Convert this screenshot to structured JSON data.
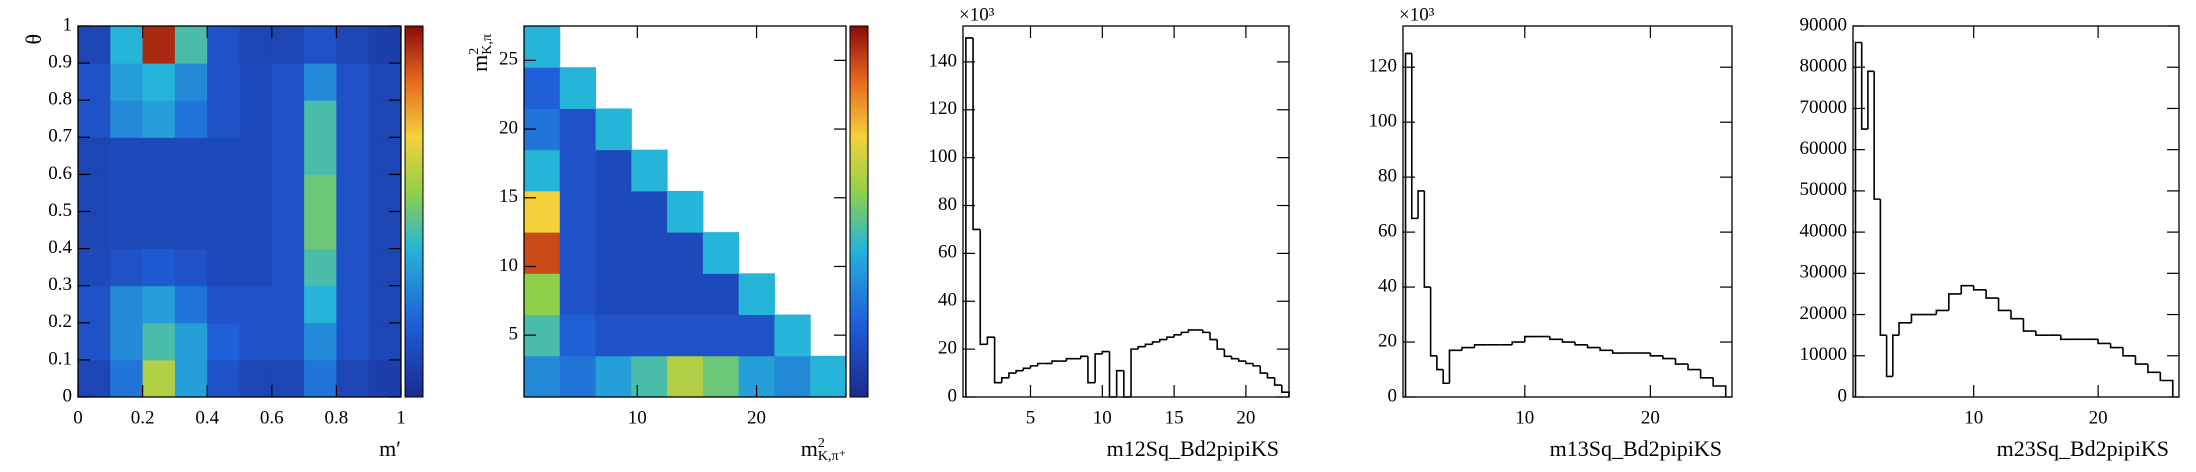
{
  "chart_data": [
    {
      "type": "heatmap",
      "x_edges": [
        0,
        0.1,
        0.2,
        0.3,
        0.4,
        0.5,
        0.6,
        0.7,
        0.8,
        0.9,
        1
      ],
      "y_edges": [
        0,
        0.1,
        0.2,
        0.3,
        0.4,
        0.5,
        0.6,
        0.7,
        0.8,
        0.9,
        1
      ],
      "z": [
        [
          10,
          25,
          60,
          35,
          15,
          10,
          10,
          25,
          10,
          8
        ],
        [
          15,
          30,
          45,
          35,
          20,
          15,
          15,
          30,
          15,
          10
        ],
        [
          15,
          30,
          35,
          25,
          15,
          15,
          15,
          40,
          15,
          10
        ],
        [
          12,
          15,
          18,
          15,
          12,
          12,
          15,
          45,
          15,
          10
        ],
        [
          10,
          12,
          12,
          12,
          12,
          12,
          15,
          50,
          15,
          10
        ],
        [
          10,
          12,
          12,
          12,
          12,
          12,
          15,
          50,
          15,
          10
        ],
        [
          10,
          12,
          12,
          12,
          12,
          12,
          15,
          45,
          15,
          10
        ],
        [
          15,
          30,
          35,
          25,
          15,
          12,
          15,
          45,
          15,
          10
        ],
        [
          15,
          35,
          40,
          30,
          15,
          12,
          15,
          30,
          15,
          10
        ],
        [
          10,
          40,
          95,
          45,
          15,
          10,
          10,
          15,
          10,
          8
        ]
      ],
      "zlim": [
        0,
        100
      ],
      "xlim": [
        0,
        1
      ],
      "ylim": [
        0,
        1
      ],
      "xticks": [
        0,
        0.2,
        0.4,
        0.6,
        0.8,
        1
      ],
      "yticks": [
        0,
        0.1,
        0.2,
        0.3,
        0.4,
        0.5,
        0.6,
        0.7,
        0.8,
        0.9,
        1
      ],
      "xlabel": "m′",
      "ylabel": "θ"
    },
    {
      "type": "heatmap",
      "x_edges": [
        0.5,
        3.5,
        6.5,
        9.5,
        12.5,
        15.5,
        18.5,
        21.5,
        24.5,
        27.5
      ],
      "y_edges": [
        0.5,
        3.5,
        6.5,
        9.5,
        12.5,
        15.5,
        18.5,
        21.5,
        24.5,
        27.5
      ],
      "z": [
        [
          30,
          25,
          35,
          45,
          60,
          50,
          35,
          30,
          40
        ],
        [
          45,
          20,
          15,
          15,
          15,
          15,
          15,
          40,
          null
        ],
        [
          55,
          15,
          12,
          12,
          12,
          12,
          40,
          null,
          null
        ],
        [
          90,
          15,
          12,
          12,
          12,
          40,
          null,
          null,
          null
        ],
        [
          70,
          15,
          12,
          12,
          40,
          null,
          null,
          null,
          null
        ],
        [
          40,
          15,
          12,
          40,
          null,
          null,
          null,
          null,
          null
        ],
        [
          25,
          15,
          40,
          null,
          null,
          null,
          null,
          null,
          null
        ],
        [
          20,
          40,
          null,
          null,
          null,
          null,
          null,
          null,
          null
        ],
        [
          40,
          null,
          null,
          null,
          null,
          null,
          null,
          null,
          null
        ]
      ],
      "zlim": [
        0,
        100
      ],
      "xlim": [
        0.5,
        27.5
      ],
      "ylim": [
        0.5,
        27.5
      ],
      "xticks": [
        10,
        20
      ],
      "yticks": [
        5,
        10,
        15,
        20,
        25
      ],
      "xlabel": {
        "text": "m",
        "sup": "2",
        "sub": "K,π⁺"
      },
      "ylabel": {
        "text": "m",
        "sup": "2",
        "sub": "K,π"
      }
    },
    {
      "type": "histogram",
      "bins": [
        0.5,
        1,
        1.5,
        2,
        2.5,
        3,
        3.5,
        4,
        4.5,
        5,
        5.5,
        6,
        6.5,
        7,
        7.5,
        8,
        8.5,
        9,
        9.5,
        10,
        10.5,
        11,
        11.5,
        12,
        12.5,
        13,
        13.5,
        14,
        14.5,
        15,
        15.5,
        16,
        16.5,
        17,
        17.5,
        18,
        18.5,
        19,
        19.5,
        20,
        20.5,
        21,
        21.5,
        22,
        22.5,
        23
      ],
      "counts": [
        150,
        70,
        22,
        25,
        6,
        8,
        10,
        11,
        12,
        13,
        14,
        14,
        15,
        15,
        16,
        16,
        17,
        6,
        18,
        19,
        0,
        11,
        0,
        20,
        21,
        22,
        23,
        24,
        25,
        26,
        27,
        28,
        28,
        27,
        24,
        20,
        17,
        16,
        15,
        14,
        13,
        10,
        8,
        5,
        2
      ],
      "xlim": [
        0.3,
        23
      ],
      "ylim": [
        0,
        155
      ],
      "xticks": [
        5,
        10,
        15,
        20
      ],
      "yticks": [
        0,
        20,
        40,
        60,
        80,
        100,
        120,
        140
      ],
      "y_exponent": "×10³",
      "xlabel": "m12Sq_Bd2pipiKS"
    },
    {
      "type": "histogram",
      "bins": [
        0.5,
        1,
        1.5,
        2,
        2.5,
        3,
        3.5,
        4,
        5,
        6,
        7,
        8,
        9,
        10,
        11,
        12,
        13,
        14,
        15,
        16,
        17,
        18,
        19,
        20,
        21,
        22,
        23,
        24,
        25,
        26
      ],
      "counts": [
        125,
        65,
        75,
        40,
        15,
        10,
        5,
        17,
        18,
        19,
        19,
        19,
        20,
        22,
        22,
        21,
        20,
        19,
        18,
        17,
        16,
        16,
        16,
        15,
        14,
        12,
        10,
        7,
        4
      ],
      "xlim": [
        0.3,
        26.5
      ],
      "ylim": [
        0,
        135
      ],
      "xticks": [
        10,
        20
      ],
      "yticks": [
        0,
        20,
        40,
        60,
        80,
        100,
        120
      ],
      "y_exponent": "×10³",
      "xlabel": "m13Sq_Bd2pipiKS"
    },
    {
      "type": "histogram",
      "bins": [
        0.5,
        1,
        1.5,
        2,
        2.5,
        3,
        3.5,
        4,
        5,
        6,
        7,
        8,
        9,
        10,
        11,
        12,
        13,
        14,
        15,
        16,
        17,
        18,
        19,
        20,
        21,
        22,
        23,
        24,
        25,
        26
      ],
      "counts": [
        86000,
        65000,
        79000,
        48000,
        15000,
        5000,
        15000,
        18000,
        20000,
        20000,
        21000,
        25000,
        27000,
        26000,
        24000,
        21000,
        19000,
        16000,
        15000,
        15000,
        14000,
        14000,
        14000,
        13000,
        12000,
        10000,
        8000,
        6000,
        4000
      ],
      "xlim": [
        0.3,
        26.5
      ],
      "ylim": [
        0,
        90000
      ],
      "xticks": [
        10,
        20
      ],
      "yticks": [
        0,
        10000,
        20000,
        30000,
        40000,
        50000,
        60000,
        70000,
        80000,
        90000
      ],
      "xlabel": "m23Sq_Bd2pipiKS"
    }
  ]
}
